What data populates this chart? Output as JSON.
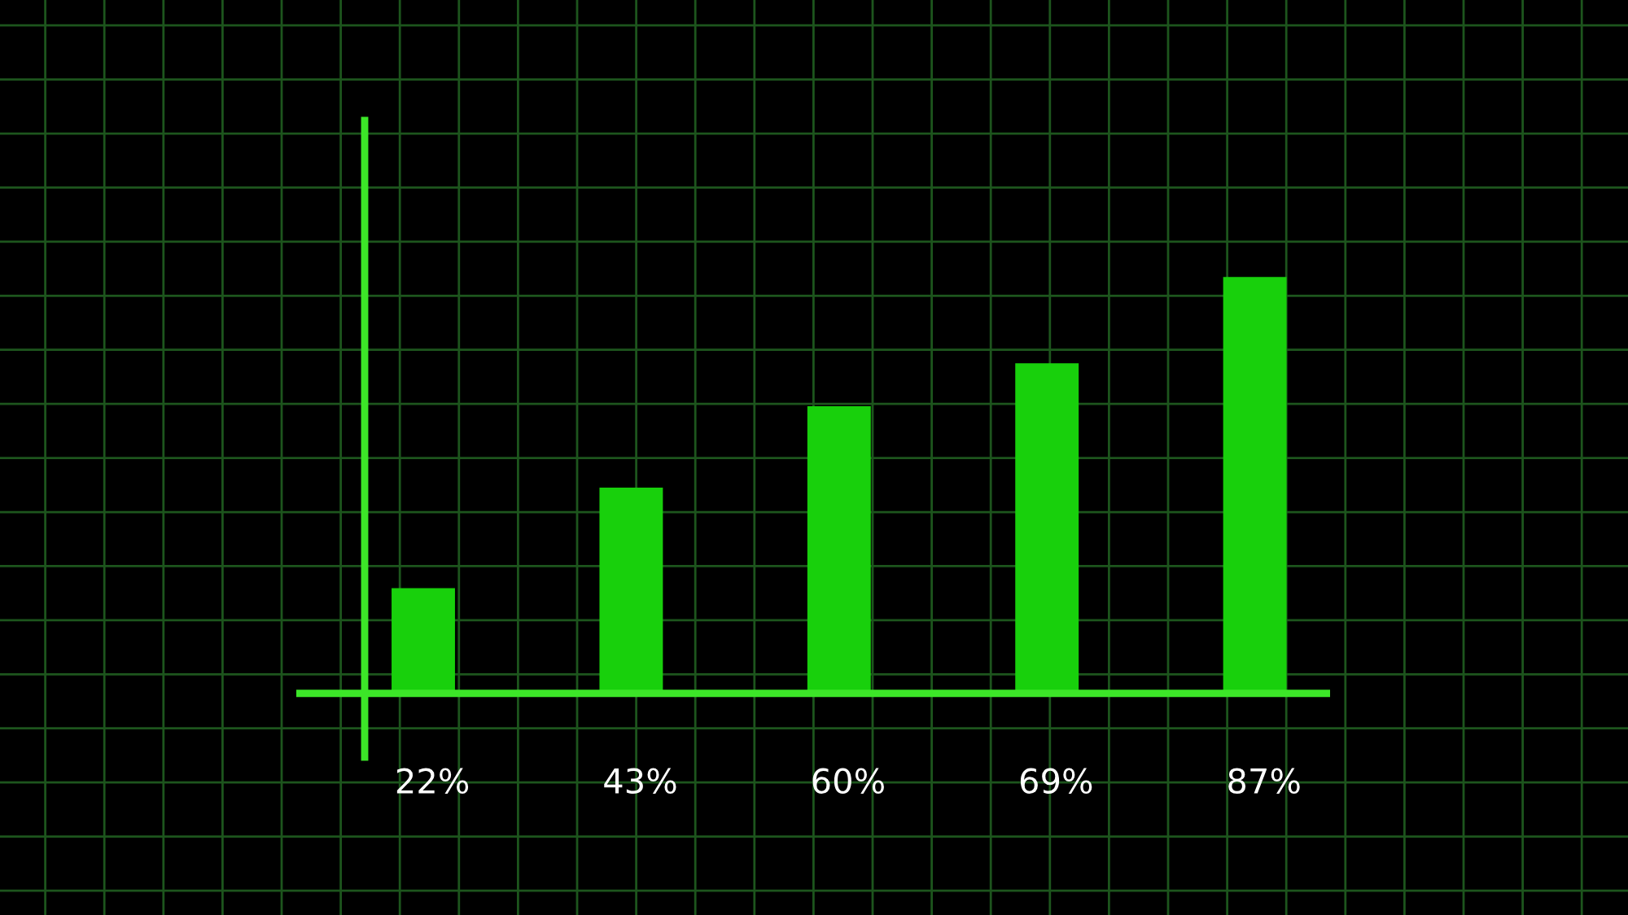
{
  "chart_data": {
    "type": "bar",
    "categories": [
      null,
      null,
      null,
      null,
      null
    ],
    "values": [
      22,
      43,
      60,
      69,
      87
    ],
    "value_labels": [
      "22%",
      "43%",
      "60%",
      "69%",
      "87%"
    ],
    "color": "#18d00c",
    "ylim": [
      -46.3,
      144.9
    ],
    "yticks": [
      {
        "value": -41.2,
        "label": null
      },
      {
        "value": -29.9,
        "label": null
      },
      {
        "value": -18.6,
        "label": null
      },
      {
        "value": -7.3,
        "label": null
      },
      {
        "value": 4.0,
        "label": null
      },
      {
        "value": 15.3,
        "label": null
      },
      {
        "value": 26.6,
        "label": null
      },
      {
        "value": 37.9,
        "label": null
      },
      {
        "value": 49.2,
        "label": null
      },
      {
        "value": 60.5,
        "label": null
      },
      {
        "value": 71.8,
        "label": null
      },
      {
        "value": 83.1,
        "label": null
      },
      {
        "value": 94.4,
        "label": null
      },
      {
        "value": 105.7,
        "label": null
      },
      {
        "value": 117.0,
        "label": null
      },
      {
        "value": 128.3,
        "label": null
      },
      {
        "value": 139.6,
        "label": null
      }
    ],
    "ref_lines": [
      {
        "axis": "y",
        "value": 0,
        "color": "#3ce628"
      }
    ],
    "grid": true
  }
}
